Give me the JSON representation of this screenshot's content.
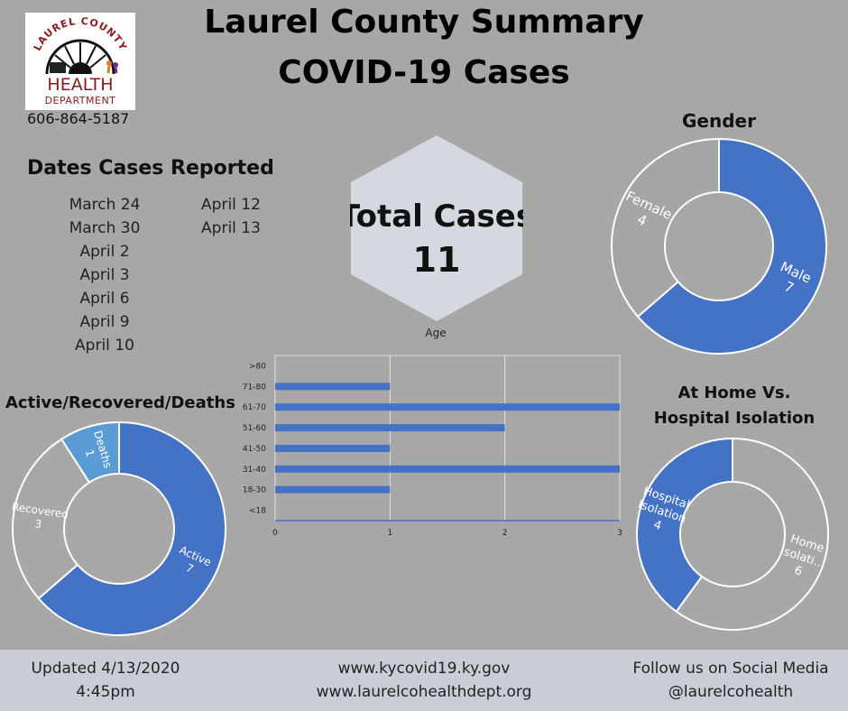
{
  "header": {
    "title_line1": "Laurel County Summary",
    "title_line2": "COVID-19 Cases",
    "phone": "606-864-5187"
  },
  "logo": {
    "arc_text": "LAUREL COUNTY",
    "line1": "HEALTH",
    "line2": "DEPARTMENT"
  },
  "dates_section": {
    "title": "Dates Cases Reported",
    "col1": [
      "March 24",
      "March 30",
      "April 2",
      "April 3",
      "April 6",
      "April 9",
      "April 10"
    ],
    "col2": [
      "April 12",
      "April 13"
    ]
  },
  "total": {
    "label": "Total Cases",
    "value": "11"
  },
  "colors": {
    "background": "#a7a7a7",
    "blue": "#4472c4",
    "light_blue": "#5b9bd5",
    "gray": "#a5a5a5",
    "footer": "#c9ced6"
  },
  "chart_data": [
    {
      "type": "pie",
      "title": "Gender",
      "style": "donut",
      "slices": [
        {
          "label": "Male",
          "value": 7,
          "color": "#4472c4"
        },
        {
          "label": "Female",
          "value": 4,
          "color": "#a5a5a5"
        }
      ]
    },
    {
      "type": "bar",
      "orientation": "horizontal",
      "title": "Age",
      "categories": [
        ">80",
        "71-80",
        "61-70",
        "51-60",
        "41-50",
        "31-40",
        "18-30",
        "<18"
      ],
      "values": [
        0,
        1,
        3,
        2,
        1,
        3,
        1,
        0
      ],
      "xlim": [
        0,
        3
      ],
      "xticks": [
        "0",
        "1",
        "2",
        "3"
      ],
      "grid": true
    },
    {
      "type": "pie",
      "title": "Active/Recovered/Deaths",
      "style": "donut",
      "slices": [
        {
          "label": "Active",
          "value": 7,
          "color": "#4472c4"
        },
        {
          "label": "Recovered",
          "value": 3,
          "color": "#a7a7a7"
        },
        {
          "label": "Deaths",
          "value": 1,
          "color": "#5b9bd5"
        }
      ]
    },
    {
      "type": "pie",
      "title_line1": "At Home Vs.",
      "title_line2": "Hospital Isolation",
      "style": "donut",
      "slices": [
        {
          "label_line1": "Home",
          "label_line2": "Isolati...",
          "value": 6,
          "color": "#a7a7a7"
        },
        {
          "label_line1": "Hospital",
          "label_line2": "Isolation",
          "value": 4,
          "color": "#4472c4"
        }
      ]
    }
  ],
  "footer": {
    "updated_line1": "Updated 4/13/2020",
    "updated_line2": "4:45pm",
    "url1": "www.kycovid19.ky.gov",
    "url2": "www.laurelcohealthdept.org",
    "social_line1": "Follow us on Social Media",
    "social_line2": "@laurelcohealth"
  }
}
